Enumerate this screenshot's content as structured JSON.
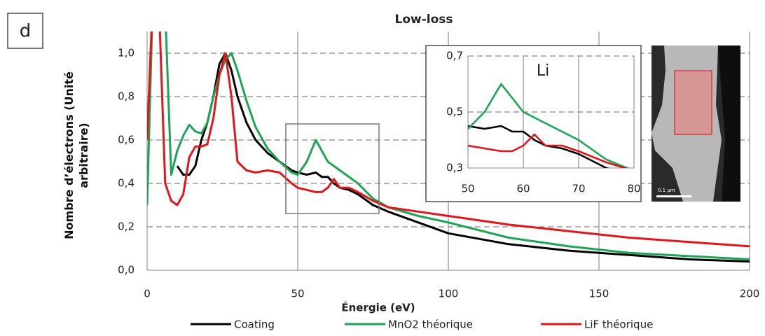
{
  "chart_data": {
    "type": "line",
    "title": "Low-loss",
    "panel_label": "d",
    "x_label": "Énergie (eV)",
    "y_label": "Nombre d’électrons (Unité arbitraire)",
    "x": [
      0,
      2,
      4,
      6,
      8,
      10,
      12,
      14,
      16,
      18,
      20,
      22,
      24,
      26,
      28,
      30,
      33,
      36,
      40,
      44,
      48,
      50,
      53,
      56,
      58,
      60,
      62,
      64,
      67,
      70,
      75,
      80,
      90,
      100,
      120,
      140,
      160,
      180,
      200
    ],
    "series": [
      {
        "name": "Coating",
        "color": "#000000",
        "values": [
          null,
          null,
          null,
          null,
          null,
          0.48,
          0.44,
          0.44,
          0.48,
          0.6,
          0.68,
          0.8,
          0.95,
          1.0,
          0.92,
          0.8,
          0.68,
          0.6,
          0.54,
          0.5,
          0.46,
          0.45,
          0.44,
          0.45,
          0.43,
          0.43,
          0.4,
          0.38,
          0.37,
          0.35,
          0.3,
          0.27,
          0.22,
          0.17,
          0.12,
          0.09,
          0.07,
          0.05,
          0.04
        ]
      },
      {
        "name": "MnO2 théorique",
        "color": "#1fa355",
        "values": [
          0.3,
          1.3,
          1.3,
          1.2,
          0.44,
          0.55,
          0.62,
          0.67,
          0.64,
          0.63,
          0.68,
          0.8,
          0.9,
          0.97,
          1.0,
          0.92,
          0.78,
          0.66,
          0.56,
          0.5,
          0.45,
          0.44,
          0.5,
          0.6,
          0.55,
          0.5,
          0.48,
          0.46,
          0.43,
          0.4,
          0.33,
          0.29,
          0.25,
          0.22,
          0.15,
          0.11,
          0.08,
          0.065,
          0.05
        ]
      },
      {
        "name": "LiF théorique",
        "color": "#e0161b",
        "values": [
          0.6,
          1.3,
          1.2,
          0.4,
          0.32,
          0.3,
          0.35,
          0.52,
          0.57,
          0.57,
          0.58,
          0.7,
          0.9,
          1.0,
          0.8,
          0.5,
          0.46,
          0.45,
          0.46,
          0.45,
          0.4,
          0.38,
          0.37,
          0.36,
          0.36,
          0.38,
          0.42,
          0.38,
          0.38,
          0.36,
          0.32,
          0.29,
          0.27,
          0.25,
          0.21,
          0.18,
          0.15,
          0.13,
          0.11
        ]
      }
    ],
    "xlim": [
      0,
      200
    ],
    "xticks": [
      0,
      50,
      100,
      150,
      200
    ],
    "ylim": [
      0,
      1.1
    ],
    "yticks": [
      {
        "value": 0,
        "label": "0,0"
      },
      {
        "value": 0.2,
        "label": "0,2"
      },
      {
        "value": 0.4,
        "label": "0,4"
      },
      {
        "value": 0.6,
        "label": "0,6"
      },
      {
        "value": 0.8,
        "label": "0,8"
      },
      {
        "value": 1.0,
        "label": "1,0"
      }
    ],
    "grid": true,
    "inset": {
      "label": "Li",
      "xlim": [
        50,
        80
      ],
      "xticks": [
        50,
        60,
        70,
        80
      ],
      "ylim": [
        0.3,
        0.7
      ],
      "yticks": [
        {
          "value": 0.3,
          "label": "0,3"
        },
        {
          "value": 0.5,
          "label": "0,5"
        },
        {
          "value": 0.7,
          "label": "0,7"
        }
      ]
    },
    "image_label": "0.1 µm"
  }
}
